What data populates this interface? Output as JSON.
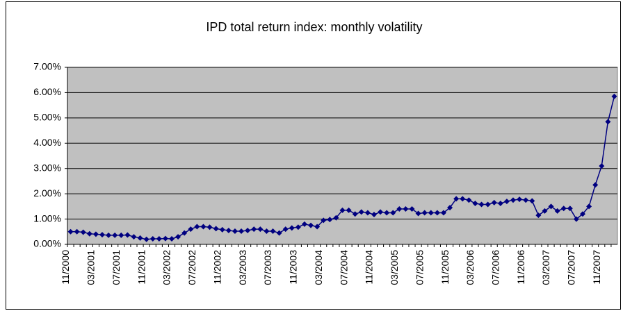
{
  "chart_data": {
    "type": "line",
    "title": "IPD total return index: monthly volatility",
    "categories": [
      "11/2000",
      null,
      null,
      null,
      "03/2001",
      null,
      null,
      null,
      "07/2001",
      null,
      null,
      null,
      "11/2001",
      null,
      null,
      null,
      "03/2002",
      null,
      null,
      null,
      "07/2002",
      null,
      null,
      null,
      "11/2002",
      null,
      null,
      null,
      "03/2003",
      null,
      null,
      null,
      "07/2003",
      null,
      null,
      null,
      "11/2003",
      null,
      null,
      null,
      "03/2004",
      null,
      null,
      null,
      "07/2004",
      null,
      null,
      null,
      "11/2004",
      null,
      null,
      null,
      "03/2005",
      null,
      null,
      null,
      "07/2005",
      null,
      null,
      null,
      "11/2005",
      null,
      null,
      null,
      "03/2006",
      null,
      null,
      null,
      "07/2006",
      null,
      null,
      null,
      "11/2006",
      null,
      null,
      null,
      "03/2007",
      null,
      null,
      null,
      "07/2007",
      null,
      null,
      null,
      "11/2007",
      null,
      null
    ],
    "values": [
      0.5,
      0.5,
      0.48,
      0.42,
      0.4,
      0.38,
      0.36,
      0.36,
      0.36,
      0.37,
      0.3,
      0.25,
      0.2,
      0.22,
      0.22,
      0.23,
      0.22,
      0.3,
      0.45,
      0.6,
      0.7,
      0.7,
      0.68,
      0.62,
      0.58,
      0.55,
      0.52,
      0.52,
      0.55,
      0.6,
      0.6,
      0.52,
      0.52,
      0.45,
      0.6,
      0.65,
      0.68,
      0.8,
      0.75,
      0.7,
      0.95,
      0.98,
      1.05,
      1.35,
      1.35,
      1.2,
      1.28,
      1.25,
      1.18,
      1.28,
      1.25,
      1.25,
      1.4,
      1.4,
      1.4,
      1.22,
      1.25,
      1.25,
      1.25,
      1.25,
      1.45,
      1.8,
      1.8,
      1.75,
      1.62,
      1.58,
      1.58,
      1.65,
      1.62,
      1.7,
      1.75,
      1.78,
      1.75,
      1.72,
      1.15,
      1.32,
      1.5,
      1.32,
      1.42,
      1.42,
      1.0,
      1.2,
      1.5,
      2.35,
      3.1,
      4.85,
      5.85
    ],
    "color": "#000080",
    "plot_background": "#c0c0c0",
    "grid": true,
    "ylim": [
      0,
      7
    ],
    "yticks": [
      {
        "value": 0,
        "label": "0.00%"
      },
      {
        "value": 1,
        "label": "1.00%"
      },
      {
        "value": 2,
        "label": "2.00%"
      },
      {
        "value": 3,
        "label": "3.00%"
      },
      {
        "value": 4,
        "label": "4.00%"
      },
      {
        "value": 5,
        "label": "5.00%"
      },
      {
        "value": 6,
        "label": "6.00%"
      },
      {
        "value": 7,
        "label": "7.00%"
      }
    ]
  }
}
